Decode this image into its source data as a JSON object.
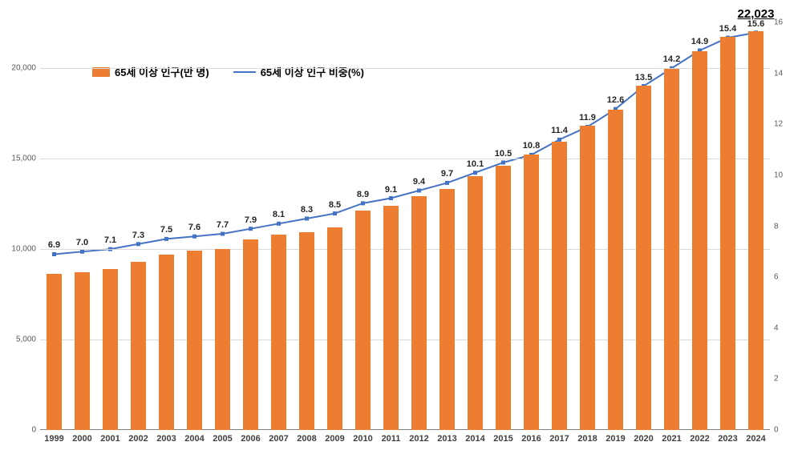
{
  "chart": {
    "type": "bar+line",
    "background_color": "#ffffff",
    "grid_color": "#d9d9d9",
    "axis_color": "#808080",
    "bar_color": "#ed7d31",
    "line_color": "#4472c4",
    "marker_color": "#4472c4",
    "categories": [
      "1999",
      "2000",
      "2001",
      "2002",
      "2003",
      "2004",
      "2005",
      "2006",
      "2007",
      "2008",
      "2009",
      "2010",
      "2011",
      "2012",
      "2013",
      "2014",
      "2015",
      "2016",
      "2017",
      "2018",
      "2019",
      "2020",
      "2021",
      "2022",
      "2023",
      "2024"
    ],
    "bar_values": [
      8600,
      8700,
      8900,
      9300,
      9700,
      9900,
      10000,
      10500,
      10800,
      10900,
      11200,
      12100,
      12400,
      12900,
      13300,
      14000,
      14600,
      15200,
      15900,
      16800,
      17700,
      19000,
      19950,
      20900,
      21700,
      22023
    ],
    "line_values": [
      6.9,
      7.0,
      7.1,
      7.3,
      7.5,
      7.6,
      7.7,
      7.9,
      8.1,
      8.3,
      8.5,
      8.9,
      9.1,
      9.4,
      9.7,
      10.1,
      10.5,
      10.8,
      11.4,
      11.9,
      12.6,
      13.5,
      14.2,
      14.9,
      15.4,
      15.6
    ],
    "line_labels": [
      "6.9",
      "7.0",
      "7.1",
      "7.3",
      "7.5",
      "7.6",
      "7.7",
      "7.9",
      "8.1",
      "8.3",
      "8.5",
      "8.9",
      "9.1",
      "9.4",
      "9.7",
      "10.1",
      "10.5",
      "10.8",
      "11.4",
      "11.9",
      "12.6",
      "13.5",
      "14.2",
      "14.9",
      "15.4",
      "15.6"
    ],
    "y_left": {
      "min": 0,
      "max": 22500,
      "ticks": [
        0,
        5000,
        10000,
        15000,
        20000
      ],
      "tick_labels": [
        "0",
        "5,000",
        "10,000",
        "15,000",
        "20,000"
      ]
    },
    "y_right": {
      "min": 0,
      "max": 16,
      "ticks": [
        0,
        2,
        4,
        6,
        8,
        10,
        12,
        14,
        16
      ],
      "tick_labels": [
        "0",
        "2",
        "4",
        "6",
        "8",
        "10",
        "12",
        "14",
        "16"
      ]
    },
    "bar_width_ratio": 0.55,
    "annotation": {
      "text": "22,023",
      "at_index": 25,
      "value_left_axis": 22500
    }
  },
  "legend": {
    "series1": {
      "label": "65세 이상 인구(만 명)",
      "swatch_color": "#ed7d31",
      "type": "bar"
    },
    "series2": {
      "label": "65세 이상 인구 비중(%)",
      "swatch_color": "#4472c4",
      "type": "line"
    }
  }
}
